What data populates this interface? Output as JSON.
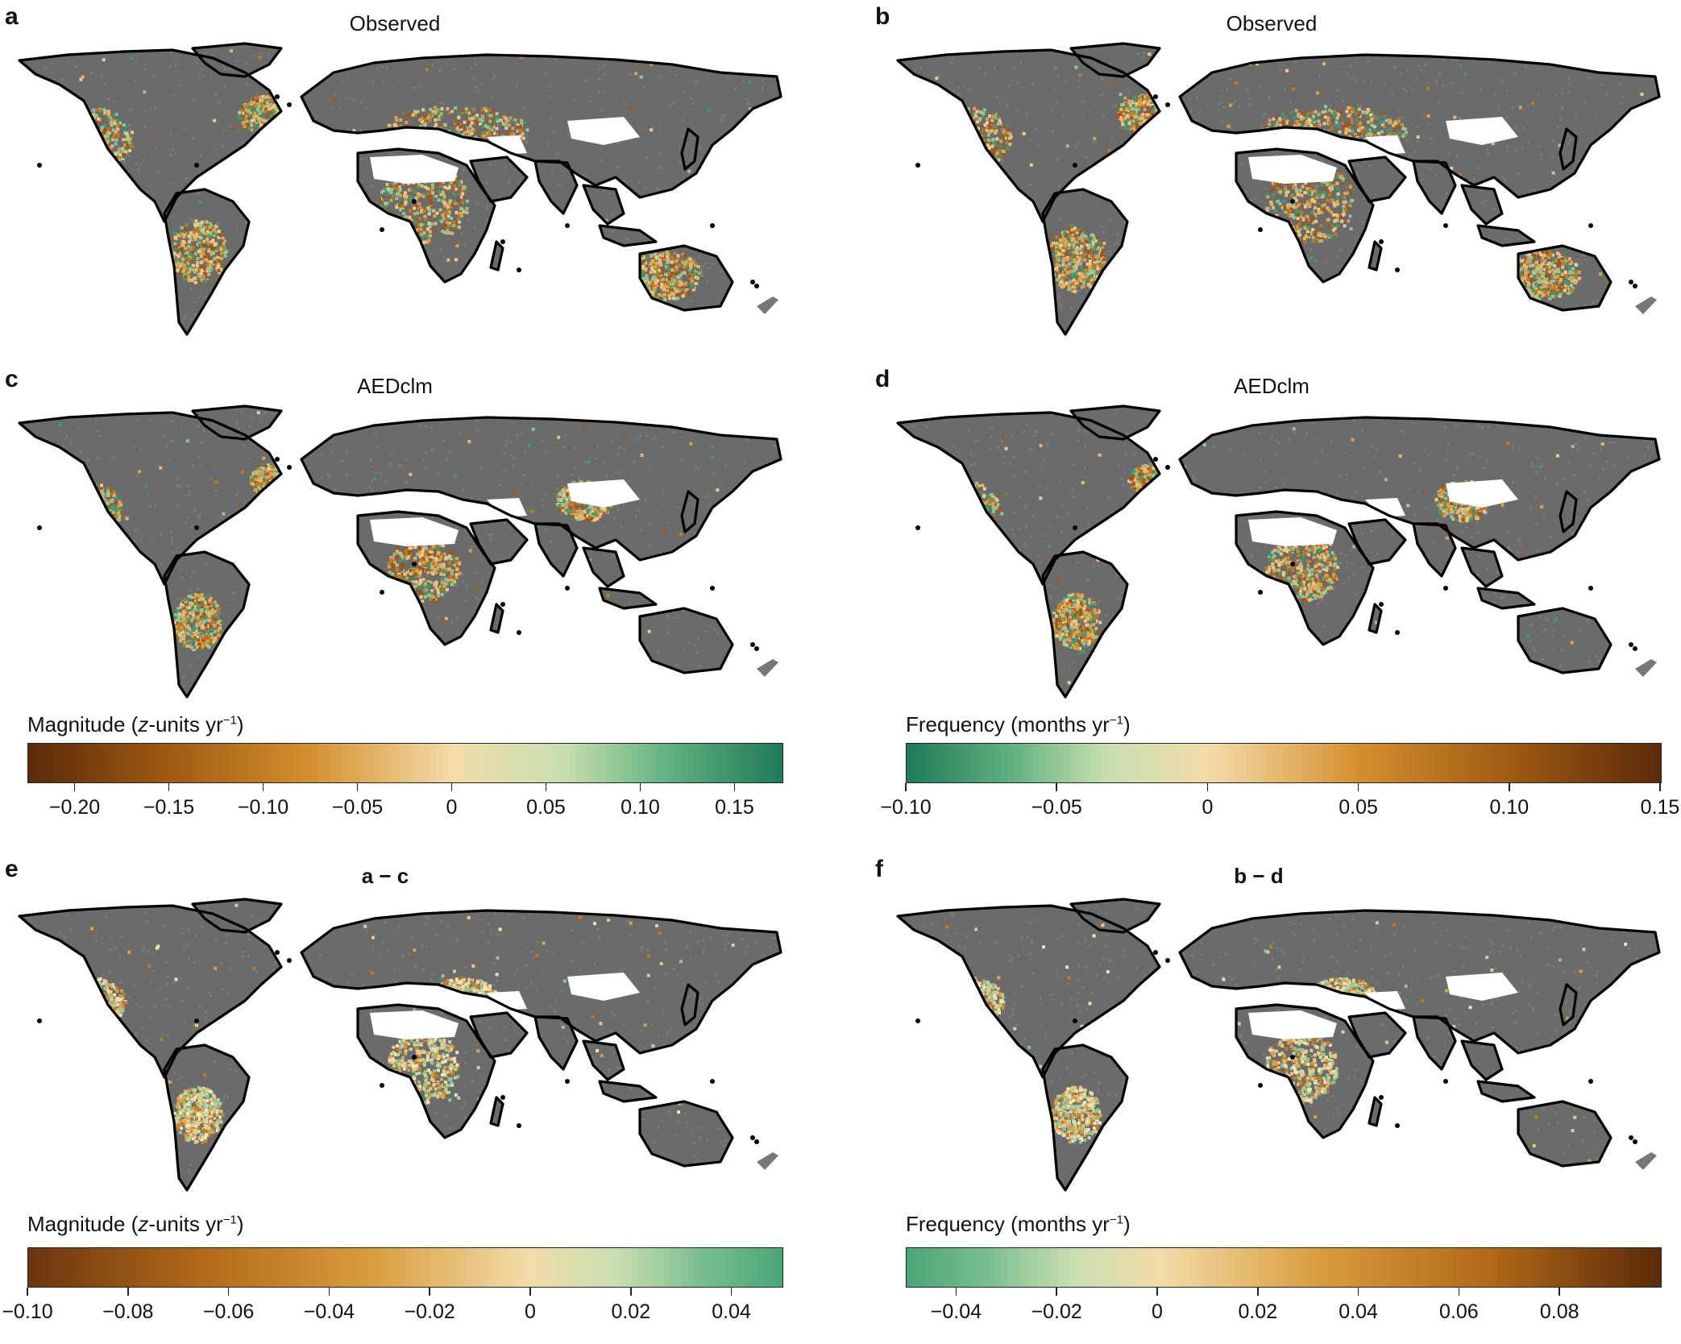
{
  "panels": [
    {
      "letter": "a",
      "title": "Observed",
      "title_bold": false,
      "scheme": "magnitude",
      "pattern": 1
    },
    {
      "letter": "b",
      "title": "Observed",
      "title_bold": false,
      "scheme": "frequency",
      "pattern": 2
    },
    {
      "letter": "c",
      "title": "AEDclm",
      "title_bold": false,
      "scheme": "magnitude",
      "pattern": 3
    },
    {
      "letter": "d",
      "title": "AEDclm",
      "title_bold": false,
      "scheme": "frequency",
      "pattern": 4
    },
    {
      "letter": "e",
      "title": "a − c",
      "title_bold": true,
      "scheme": "magdiff",
      "pattern": 5
    },
    {
      "letter": "f",
      "title": "b − d",
      "title_bold": true,
      "scheme": "freqdiff",
      "pattern": 6
    }
  ],
  "colorbars": [
    {
      "id": "cb1",
      "label_pre": "Magnitude (",
      "label_italic": "z",
      "label_mid": "-units yr",
      "label_sup": "−1",
      "label_post": ")",
      "min": -0.225,
      "max": 0.175,
      "ticks": [
        -0.2,
        -0.15,
        -0.1,
        -0.05,
        0,
        0.05,
        0.1,
        0.15
      ],
      "tick_labels": [
        "−0.20",
        "−0.15",
        "−0.10",
        "−0.05",
        "0",
        "0.05",
        "0.10",
        "0.15"
      ],
      "colors": [
        "#5a2a08",
        "#a05a12",
        "#d4902e",
        "#f3dcaa",
        "#c9dfb0",
        "#5cb07e",
        "#1f7a58"
      ],
      "zero_frac": 0.5625
    },
    {
      "id": "cb2",
      "label_pre": "Frequency (",
      "label_italic": "",
      "label_mid": "months yr",
      "label_sup": "−1",
      "label_post": ")",
      "min": -0.1,
      "max": 0.15,
      "ticks": [
        -0.1,
        -0.05,
        0,
        0.05,
        0.1,
        0.15
      ],
      "tick_labels": [
        "−0.10",
        "−0.05",
        "0",
        "0.05",
        "0.10",
        "0.15"
      ],
      "colors": [
        "#1f7a58",
        "#5cb07e",
        "#c9dfb0",
        "#f3dcaa",
        "#d4902e",
        "#a05a12",
        "#5a2a08"
      ],
      "zero_frac": 0.4
    },
    {
      "id": "cb3",
      "label_pre": "Magnitude (",
      "label_italic": "z",
      "label_mid": "-units yr",
      "label_sup": "−1",
      "label_post": ")",
      "min": -0.1,
      "max": 0.05,
      "ticks": [
        -0.1,
        -0.08,
        -0.06,
        -0.04,
        -0.02,
        0,
        0.02,
        0.04
      ],
      "tick_labels": [
        "−0.10",
        "−0.08",
        "−0.06",
        "−0.04",
        "−0.02",
        "0",
        "0.02",
        "0.04"
      ],
      "colors": [
        "#6b3510",
        "#b06818",
        "#d89a3a",
        "#f3dcaa",
        "#c9dfb0",
        "#7bbf90",
        "#4aa676"
      ],
      "zero_frac": 0.6667
    },
    {
      "id": "cb4",
      "label_pre": "Frequency (",
      "label_italic": "",
      "label_mid": "months yr",
      "label_sup": "−1",
      "label_post": ")",
      "min": -0.05,
      "max": 0.1,
      "ticks": [
        -0.04,
        -0.02,
        0,
        0.02,
        0.04,
        0.06,
        0.08
      ],
      "tick_labels": [
        "−0.04",
        "−0.02",
        "0",
        "0.02",
        "0.04",
        "0.06",
        "0.08"
      ],
      "colors": [
        "#4aa676",
        "#7bbf90",
        "#c9dfb0",
        "#f3dcaa",
        "#d89a3a",
        "#b06818",
        "#5a2a08"
      ],
      "zero_frac": 0.3333
    }
  ]
}
